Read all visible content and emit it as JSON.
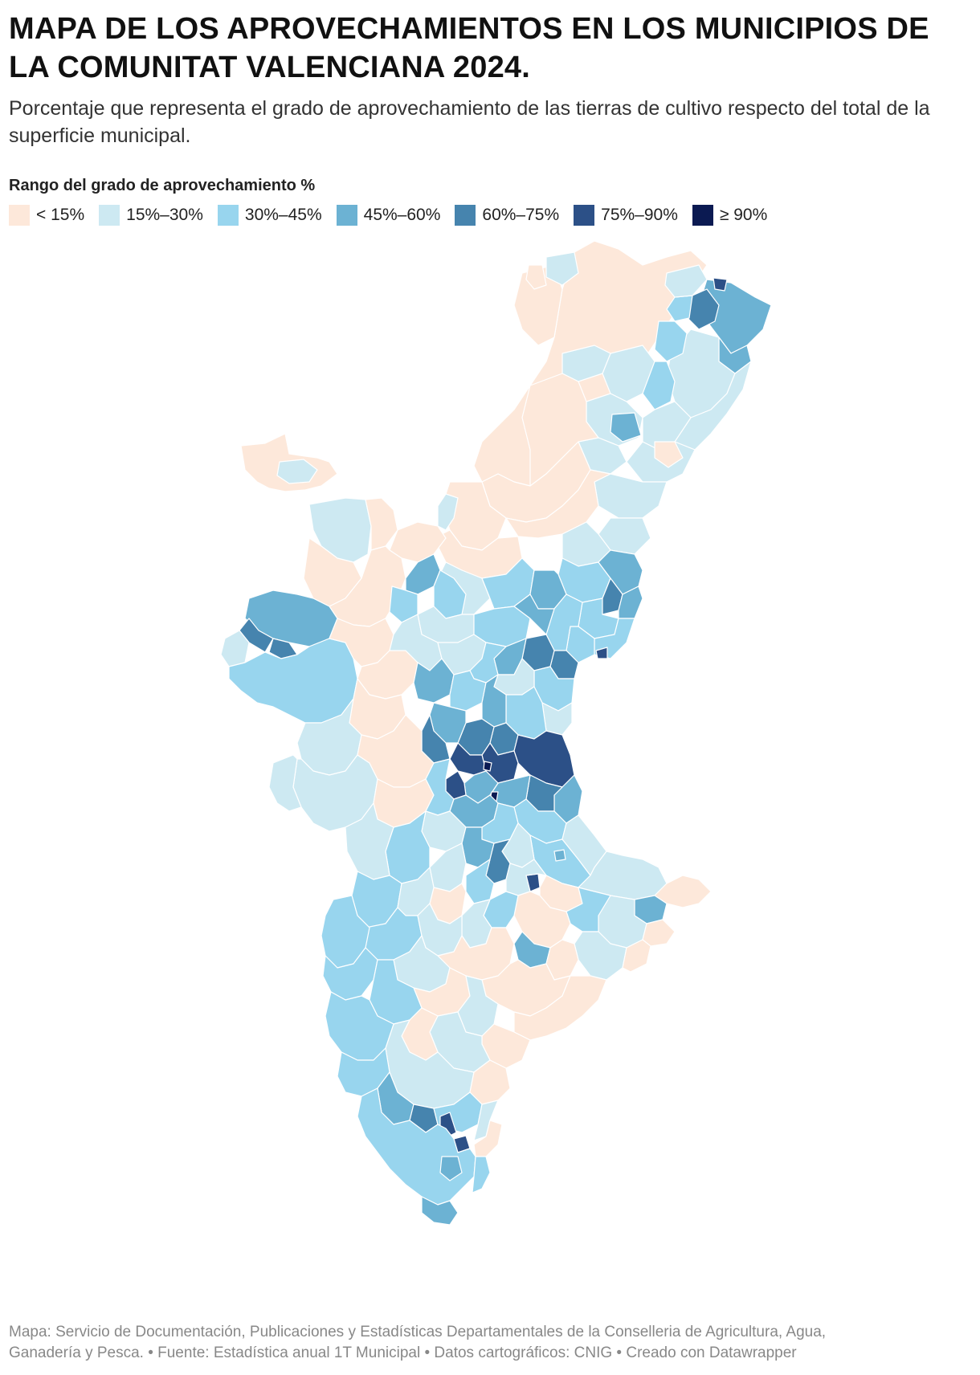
{
  "title": "MAPA DE LOS APROVECHAMIENTOS EN LOS MUNICIPIOS DE LA COMUNITAT VALENCIANA 2024.",
  "subtitle": "Porcentaje que representa el grado de aprovechamiento de las tierras de cultivo respecto del total de la superficie municipal.",
  "legend": {
    "title": "Rango del grado de aprovechamiento %",
    "items": [
      {
        "label": "< 15%",
        "color": "#fde8da"
      },
      {
        "label": "15%–30%",
        "color": "#cde9f2"
      },
      {
        "label": "30%–45%",
        "color": "#98d5ee"
      },
      {
        "label": "45%–60%",
        "color": "#6cb2d3"
      },
      {
        "label": "60%–75%",
        "color": "#4684ae"
      },
      {
        "label": "75%–90%",
        "color": "#2c5087"
      },
      {
        "label": "≥ 90%",
        "color": "#0b1a52"
      }
    ]
  },
  "footer": {
    "line1": "Mapa: Servicio de Documentación, Publicaciones y Estadísticas Departamentales de la Conselleria de Agricultura, Agua,",
    "line2": "Ganadería y Pesca. • Fuente: Estadística anual 1T Municipal • Datos cartográficos: CNIG  • Creado con Datawrapper"
  }
}
